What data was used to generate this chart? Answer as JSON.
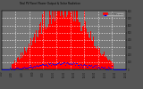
{
  "title": "Total PV Panel Power Output & Solar Radiation",
  "bg_color": "#555555",
  "plot_bg_color": "#777777",
  "bar_color": "#ff0000",
  "scatter_color": "#0000ff",
  "grid_color": "#ffffff",
  "n_bars": 144,
  "ylim": [
    0,
    1
  ],
  "xlim": [
    0,
    144
  ],
  "right_ticks": [
    "800",
    "700",
    "600",
    "500",
    "400",
    "300",
    "200",
    "100",
    "0"
  ],
  "legend_pv": "PV Power",
  "legend_rad": "Solar Radiation",
  "title_color": "#000000",
  "title_fontsize": 3.5
}
